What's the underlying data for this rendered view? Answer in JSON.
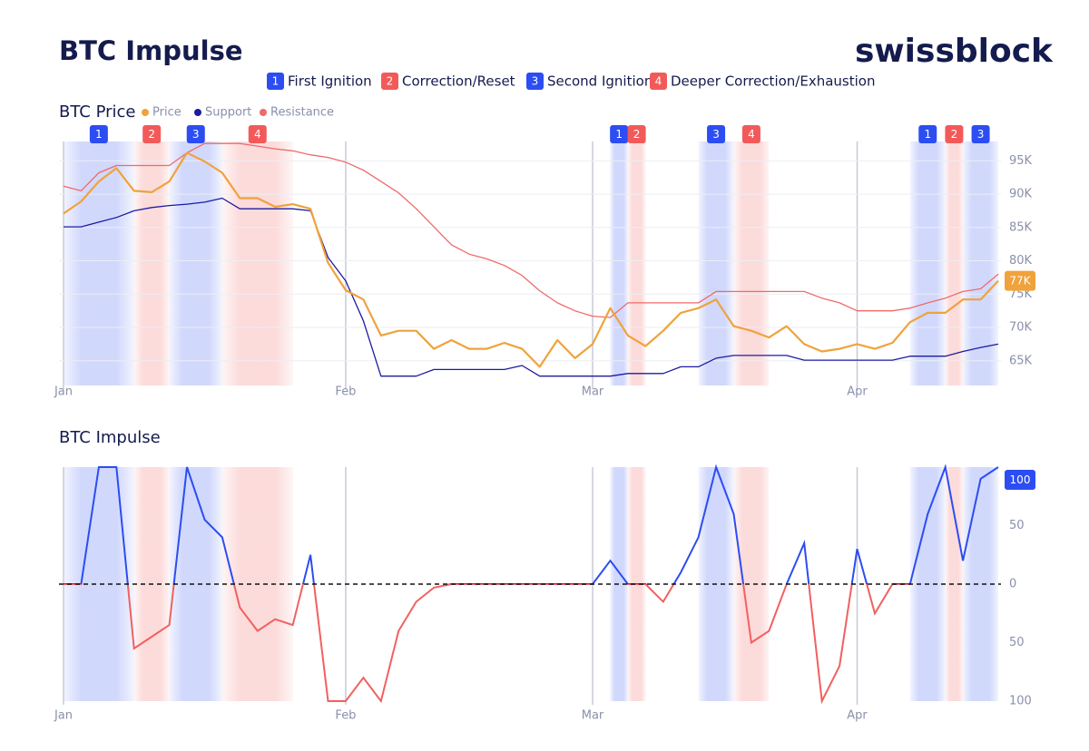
{
  "header": {
    "title": "BTC Impulse",
    "brand": "swissblock"
  },
  "phases": [
    {
      "label": "1",
      "name": "First Ignition",
      "color": "#2c4df2"
    },
    {
      "label": "2",
      "name": "Correction/Reset",
      "color": "#f25a5a"
    },
    {
      "label": "3",
      "name": "Second Ignition",
      "color": "#2c4df2"
    },
    {
      "label": "4",
      "name": "Deeper Correction/Exhaustion",
      "color": "#f25a5a"
    }
  ],
  "regions": [
    {
      "phase": "1",
      "start": 0,
      "end": 4
    },
    {
      "phase": "2",
      "start": 4,
      "end": 6
    },
    {
      "phase": "3",
      "start": 6,
      "end": 9
    },
    {
      "phase": "4",
      "start": 9,
      "end": 13
    },
    {
      "phase": "1",
      "start": 31,
      "end": 32
    },
    {
      "phase": "2",
      "start": 32,
      "end": 33
    },
    {
      "phase": "3",
      "start": 36,
      "end": 38
    },
    {
      "phase": "4",
      "start": 38,
      "end": 40
    },
    {
      "phase": "1",
      "start": 48,
      "end": 50
    },
    {
      "phase": "2",
      "start": 50,
      "end": 51
    },
    {
      "phase": "3",
      "start": 51,
      "end": 53
    }
  ],
  "chart_data": [
    {
      "type": "line",
      "title": "BTC Price",
      "grid": true,
      "categories": [
        "Jan",
        null,
        null,
        null,
        null,
        null,
        null,
        null,
        null,
        null,
        null,
        null,
        null,
        null,
        null,
        null,
        "Feb",
        null,
        null,
        null,
        null,
        null,
        null,
        null,
        null,
        null,
        null,
        null,
        null,
        null,
        "Mar",
        null,
        null,
        null,
        null,
        null,
        null,
        null,
        null,
        null,
        null,
        null,
        null,
        null,
        null,
        "Apr",
        null,
        null,
        null,
        null,
        null,
        null,
        null,
        null
      ],
      "ylim": [
        61300,
        97900
      ],
      "yticks": [
        {
          "value": 65000,
          "label": "65K"
        },
        {
          "value": 70000,
          "label": "70K"
        },
        {
          "value": 75000,
          "label": "75K"
        },
        {
          "value": 80000,
          "label": "80K"
        },
        {
          "value": 85000,
          "label": "85K"
        },
        {
          "value": 90000,
          "label": "90K"
        },
        {
          "value": 95000,
          "label": "95K"
        }
      ],
      "series": [
        {
          "name": "Price",
          "color": "#f0a23b",
          "values": [
            87100,
            88900,
            91900,
            93900,
            90500,
            90300,
            91900,
            96200,
            94900,
            93200,
            89400,
            89400,
            88100,
            88500,
            87800,
            79700,
            75600,
            74200,
            68800,
            69500,
            69500,
            66800,
            68100,
            66800,
            66800,
            67700,
            66800,
            64100,
            68100,
            65400,
            67500,
            72900,
            68800,
            67200,
            69500,
            72200,
            72900,
            74200,
            70200,
            69500,
            68500,
            70200,
            67500,
            66400,
            66800,
            67500,
            66800,
            67700,
            70800,
            72200,
            72200,
            74200,
            74200,
            77000
          ],
          "value_labels": [
            null,
            null,
            null,
            null,
            null,
            null,
            null,
            null,
            null,
            null,
            null,
            null,
            null,
            null,
            null,
            null,
            null,
            null,
            null,
            null,
            null,
            null,
            null,
            null,
            null,
            null,
            null,
            null,
            null,
            null,
            null,
            null,
            null,
            null,
            null,
            null,
            null,
            null,
            null,
            null,
            null,
            null,
            null,
            null,
            null,
            null,
            null,
            null,
            null,
            null,
            null,
            null,
            null,
            "77K"
          ]
        },
        {
          "name": "Support",
          "color": "#1c1ca0",
          "values": [
            85100,
            85100,
            85800,
            86500,
            87500,
            88000,
            88300,
            88500,
            88800,
            89400,
            87800,
            87800,
            87800,
            87800,
            87500,
            80500,
            77000,
            71000,
            62700,
            62700,
            62700,
            63700,
            63700,
            63700,
            63700,
            63700,
            64300,
            62700,
            62700,
            62700,
            62700,
            62700,
            63100,
            63100,
            63100,
            64100,
            64100,
            65400,
            65800,
            65800,
            65800,
            65800,
            65100,
            65100,
            65100,
            65100,
            65100,
            65100,
            65700,
            65700,
            65700,
            66400,
            67000,
            67500
          ]
        },
        {
          "name": "Resistance",
          "color": "#f06a6a",
          "values": [
            91200,
            90500,
            93200,
            94300,
            94300,
            94300,
            94300,
            96200,
            97600,
            97600,
            97600,
            97200,
            96800,
            96500,
            95900,
            95500,
            94800,
            93600,
            91900,
            90200,
            87800,
            85100,
            82400,
            81000,
            80300,
            79300,
            77800,
            75500,
            73700,
            72500,
            71700,
            71500,
            73700,
            73700,
            73700,
            73700,
            73700,
            75400,
            75400,
            75400,
            75400,
            75400,
            75400,
            74400,
            73700,
            72500,
            72500,
            72500,
            72900,
            73700,
            74400,
            75400,
            75800,
            78000
          ]
        }
      ]
    },
    {
      "type": "impulse",
      "title": "BTC Impulse",
      "grid": false,
      "zero_line": true,
      "color_positive": "#2c4df2",
      "color_negative": "#f26060",
      "categories": [
        "Jan",
        null,
        null,
        null,
        null,
        null,
        null,
        null,
        null,
        null,
        null,
        null,
        null,
        null,
        null,
        null,
        "Feb",
        null,
        null,
        null,
        null,
        null,
        null,
        null,
        null,
        null,
        null,
        null,
        null,
        null,
        "Mar",
        null,
        null,
        null,
        null,
        null,
        null,
        null,
        null,
        null,
        null,
        null,
        null,
        null,
        null,
        "Apr",
        null,
        null,
        null,
        null,
        null,
        null,
        null,
        null
      ],
      "ylim": [
        -100,
        100
      ],
      "yticks": [
        {
          "value": -100,
          "label": "100"
        },
        {
          "value": -50,
          "label": "50"
        },
        0,
        50
      ],
      "values": [
        0,
        0,
        100,
        100,
        -55,
        -45,
        -35,
        100,
        55,
        40,
        -20,
        -40,
        -30,
        -35,
        25,
        -100,
        -100,
        -80,
        -100,
        -40,
        -15,
        -3,
        0,
        0,
        0,
        0,
        0,
        0,
        0,
        0,
        0,
        20,
        0,
        0,
        -15,
        10,
        40,
        100,
        60,
        -50,
        -40,
        0,
        35,
        -100,
        -70,
        30,
        -25,
        0,
        0,
        60,
        100,
        20,
        90,
        100
      ],
      "value_labels": [
        null,
        null,
        null,
        null,
        null,
        null,
        null,
        null,
        null,
        null,
        null,
        null,
        null,
        null,
        null,
        null,
        null,
        null,
        null,
        null,
        null,
        null,
        null,
        null,
        null,
        null,
        null,
        null,
        null,
        null,
        null,
        null,
        null,
        null,
        null,
        null,
        null,
        null,
        null,
        null,
        null,
        null,
        null,
        null,
        null,
        null,
        null,
        null,
        null,
        null,
        null,
        null,
        null,
        "100"
      ]
    }
  ]
}
